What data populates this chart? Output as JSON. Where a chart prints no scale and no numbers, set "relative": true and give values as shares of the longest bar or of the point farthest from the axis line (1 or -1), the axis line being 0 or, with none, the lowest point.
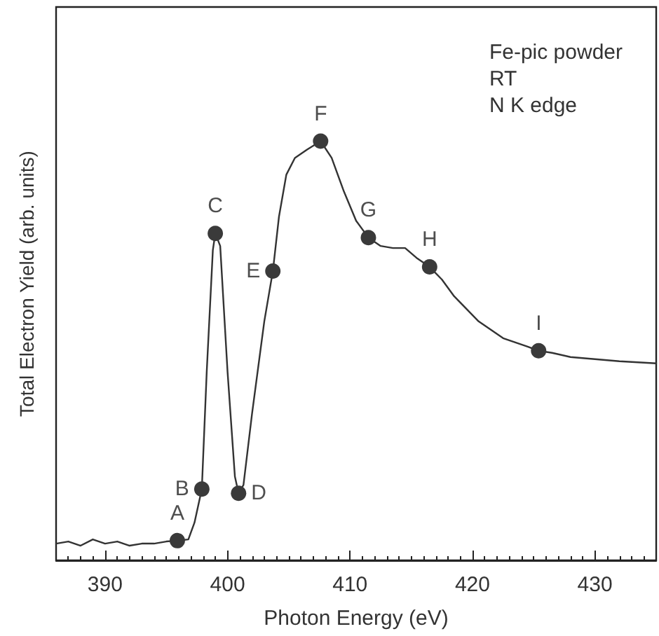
{
  "chart_data": {
    "type": "line",
    "xlabel": "Photon Energy (eV)",
    "ylabel": "Total Electron Yield (arb. units)",
    "relative": true,
    "xlim": [
      386,
      435
    ],
    "xticks": [
      390,
      400,
      410,
      420,
      430
    ],
    "annotations": [
      "Fe-pic powder",
      "RT",
      "N K edge",
      {
        "text": "A",
        "x": 395.9,
        "y": 0.047
      },
      {
        "text": "B",
        "x": 397.9,
        "y": 0.17
      },
      {
        "text": "C",
        "x": 399.0,
        "y": 0.78
      },
      {
        "text": "D",
        "x": 400.9,
        "y": 0.16
      },
      {
        "text": "E",
        "x": 403.7,
        "y": 0.69
      },
      {
        "text": "F",
        "x": 407.6,
        "y": 1.0
      },
      {
        "text": "G",
        "x": 411.5,
        "y": 0.77
      },
      {
        "text": "H",
        "x": 416.5,
        "y": 0.7
      },
      {
        "text": "I",
        "x": 425.4,
        "y": 0.5
      }
    ],
    "series": [
      {
        "color": "#333333",
        "line_style": "solid",
        "marker": "none",
        "x": [
          386,
          387,
          388,
          389,
          390,
          391,
          392,
          393,
          394,
          395,
          395.9,
          396.8,
          397.3,
          397.9,
          398.3,
          398.8,
          399.0,
          399.4,
          400.0,
          400.6,
          400.9,
          401.3,
          402.0,
          403.0,
          403.7,
          404.2,
          404.8,
          405.5,
          406.5,
          407.6,
          408.5,
          409.5,
          410.5,
          411.5,
          412.5,
          413.5,
          414.5,
          415.5,
          416.5,
          417.5,
          418.5,
          419.5,
          420.5,
          421.5,
          422.5,
          423.5,
          424.5,
          425.4,
          426.5,
          428,
          430,
          432,
          435
        ],
        "values": [
          0.04,
          0.045,
          0.035,
          0.05,
          0.04,
          0.045,
          0.035,
          0.04,
          0.04,
          0.045,
          0.047,
          0.05,
          0.09,
          0.17,
          0.45,
          0.74,
          0.78,
          0.75,
          0.45,
          0.2,
          0.16,
          0.18,
          0.35,
          0.57,
          0.69,
          0.82,
          0.92,
          0.96,
          0.98,
          1.0,
          0.96,
          0.88,
          0.81,
          0.77,
          0.75,
          0.745,
          0.745,
          0.72,
          0.7,
          0.67,
          0.63,
          0.6,
          0.57,
          0.55,
          0.53,
          0.52,
          0.51,
          0.5,
          0.495,
          0.485,
          0.48,
          0.475,
          0.47
        ]
      },
      {
        "type": "scatter",
        "color": "#3a3a3a",
        "marker": "circle",
        "x": [
          395.9,
          397.9,
          399.0,
          400.9,
          403.7,
          407.6,
          411.5,
          416.5,
          425.4
        ],
        "values": [
          0.047,
          0.17,
          0.78,
          0.16,
          0.69,
          1.0,
          0.77,
          0.7,
          0.5
        ]
      }
    ]
  }
}
